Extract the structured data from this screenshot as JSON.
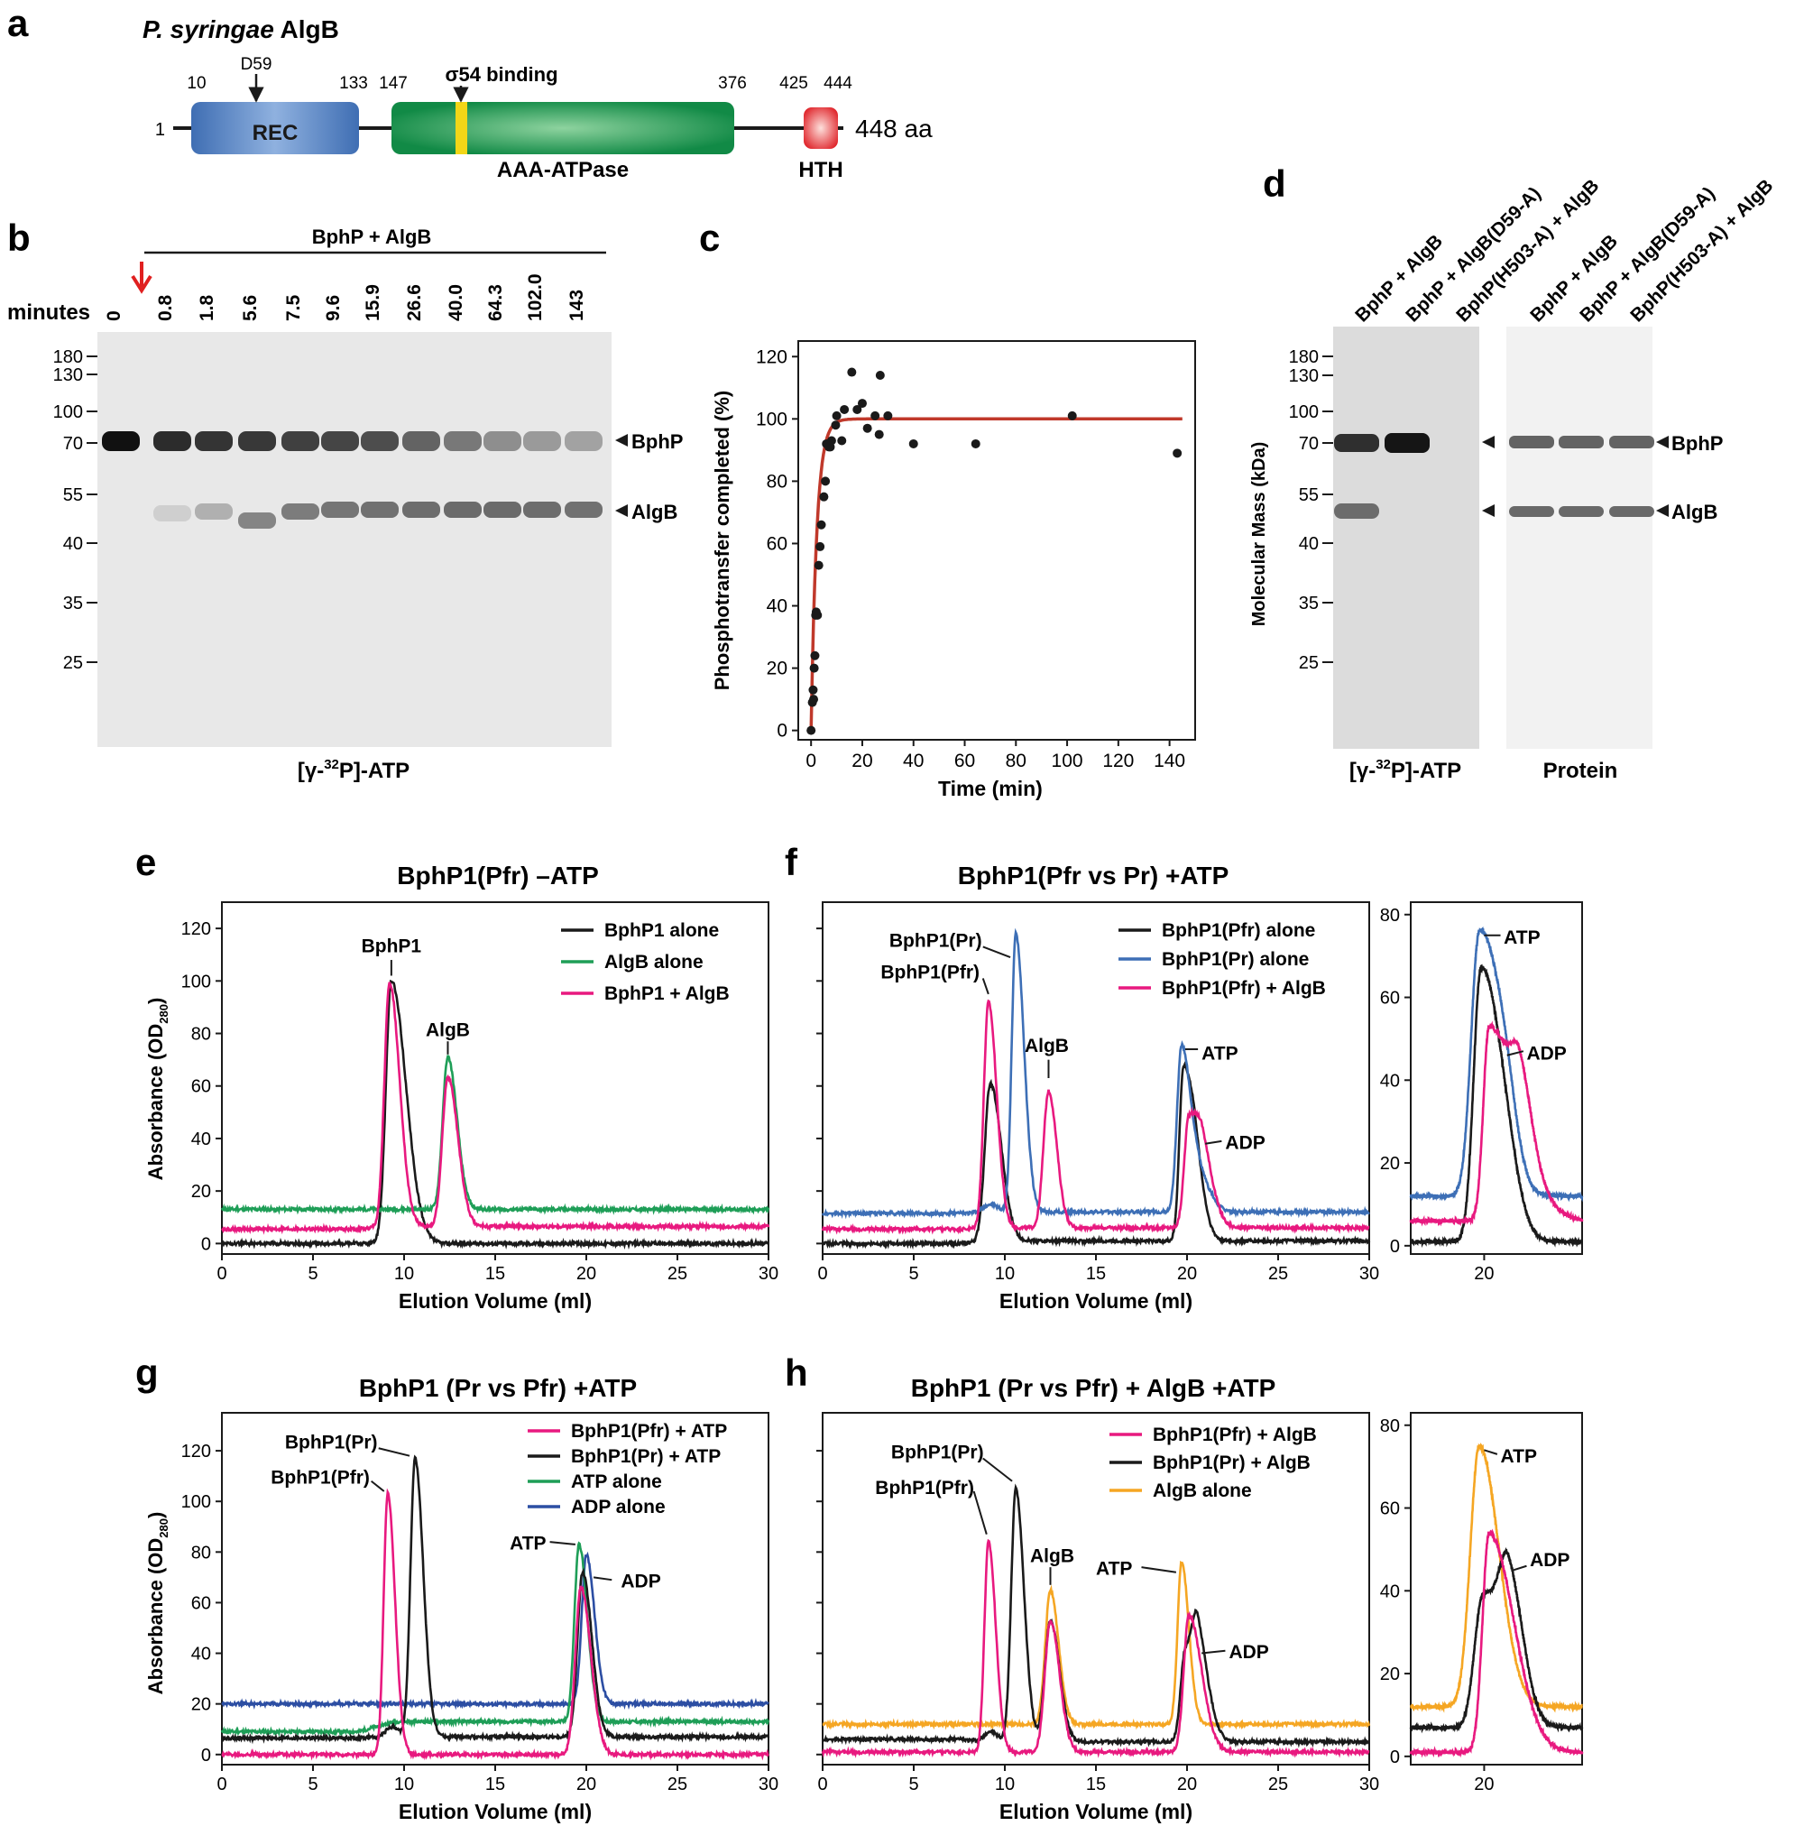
{
  "panels": {
    "a": {
      "letter": "a",
      "title_italic": "P. syringae",
      "title_rest": " AlgB",
      "pos_labels": [
        "10",
        "133",
        "147",
        "376",
        "425",
        "444"
      ],
      "start": "1",
      "end": "448 aa",
      "d59": "D59",
      "sigma": "σ54 binding",
      "rec": "REC",
      "aaa": "AAA-ATPase",
      "hth": "HTH"
    },
    "b": {
      "letter": "b",
      "bracket_label": "BphP + AlgB",
      "minutes_label": "minutes",
      "lanes": [
        "0",
        "0.8",
        "1.8",
        "5.6",
        "7.5",
        "9.6",
        "15.9",
        "26.6",
        "40.0",
        "64.3",
        "102.0",
        "143"
      ],
      "markers": [
        "180",
        "130",
        "100",
        "70",
        "55",
        "40",
        "35",
        "25"
      ],
      "band_bphp": "BphP",
      "band_algb": "AlgB",
      "caption_pre": "[γ-",
      "caption_sup": "32",
      "caption_post": "P]-ATP"
    },
    "c": {
      "letter": "c",
      "ylabel": "Phosphotransfer completed (%)",
      "xlabel": "Time (min)",
      "xticks": [
        "0",
        "20",
        "40",
        "60",
        "80",
        "100",
        "120",
        "140"
      ],
      "yticks": [
        "0",
        "20",
        "40",
        "60",
        "80",
        "100",
        "120"
      ]
    },
    "d": {
      "letter": "d",
      "lanes_left": [
        "BphP + AlgB",
        "BphP + AlgB(D59-A)",
        "BphP(H503-A) + AlgB"
      ],
      "lanes_right": [
        "BphP + AlgB",
        "BphP + AlgB(D59-A)",
        "BphP(H503-A) + AlgB"
      ],
      "ylabel": "Molecular Mass (kDa)",
      "markers": [
        "180",
        "130",
        "100",
        "70",
        "55",
        "40",
        "35",
        "25"
      ],
      "band_bphp": "BphP",
      "band_algb": "AlgB",
      "caption_left_pre": "[γ-",
      "caption_left_sup": "32",
      "caption_left_post": "P]-ATP",
      "caption_right": "Protein"
    },
    "e": {
      "letter": "e",
      "title": "BphP1(Pfr) –ATP",
      "ylabel_main": "Absorbance (OD",
      "ylabel_sub": "280",
      "ylabel_end": ")",
      "xlabel": "Elution Volume (ml)",
      "xticks": [
        "0",
        "5",
        "10",
        "15",
        "20",
        "25",
        "30"
      ],
      "yticks": [
        "0",
        "20",
        "40",
        "60",
        "80",
        "100",
        "120"
      ],
      "legend": [
        "BphP1 alone",
        "AlgB alone",
        "BphP1 + AlgB"
      ],
      "ann": [
        "BphP1",
        "AlgB"
      ]
    },
    "f": {
      "letter": "f",
      "title": "BphP1(Pfr vs Pr) +ATP",
      "xlabel": "Elution Volume (ml)",
      "xticks": [
        "0",
        "5",
        "10",
        "15",
        "20",
        "25",
        "30"
      ],
      "legend": [
        "BphP1(Pfr) alone",
        "BphP1(Pr) alone",
        "BphP1(Pfr) + AlgB"
      ],
      "ann": [
        "BphP1(Pr)",
        "BphP1(Pfr)",
        "AlgB",
        "ATP",
        "ADP"
      ],
      "inset_yticks": [
        "0",
        "20",
        "40",
        "60",
        "80"
      ],
      "inset_xtick": "20",
      "inset_ann": [
        "ATP",
        "ADP"
      ]
    },
    "g": {
      "letter": "g",
      "title": "BphP1 (Pr vs Pfr) +ATP",
      "ylabel_main": "Absorbance (OD",
      "ylabel_sub": "280",
      "ylabel_end": ")",
      "xlabel": "Elution Volume (ml)",
      "xticks": [
        "0",
        "5",
        "10",
        "15",
        "20",
        "25",
        "30"
      ],
      "yticks": [
        "0",
        "20",
        "40",
        "60",
        "80",
        "100",
        "120"
      ],
      "legend": [
        "BphP1(Pfr) + ATP",
        "BphP1(Pr) + ATP",
        "ATP alone",
        "ADP alone"
      ],
      "ann": [
        "BphP1(Pr)",
        "BphP1(Pfr)",
        "ATP",
        "ADP"
      ]
    },
    "h": {
      "letter": "h",
      "title": "BphP1 (Pr vs Pfr) + AlgB +ATP",
      "xlabel": "Elution Volume (ml)",
      "xticks": [
        "0",
        "5",
        "10",
        "15",
        "20",
        "25",
        "30"
      ],
      "legend": [
        "BphP1(Pfr) + AlgB",
        "BphP1(Pr) + AlgB",
        "AlgB alone"
      ],
      "ann": [
        "BphP1(Pr)",
        "BphP1(Pfr)",
        "AlgB",
        "ATP",
        "ADP"
      ],
      "inset_yticks": [
        "0",
        "20",
        "40",
        "60",
        "80"
      ],
      "inset_xtick": "20",
      "inset_ann": [
        "ATP",
        "ADP"
      ]
    }
  },
  "colors": {
    "black": "#1a1a1a",
    "green": "#1e9e57",
    "pink": "#e8197f",
    "blue": "#3d6fb6",
    "navy": "#2c4ea3",
    "orange": "#f5a623",
    "fit": "#c0392b",
    "arrow_red": "#e02020"
  },
  "chart_data": [
    {
      "id": "c",
      "type": "scatter",
      "title": "",
      "xlabel": "Time (min)",
      "ylabel": "Phosphotransfer completed (%)",
      "xlim": [
        -5,
        150
      ],
      "ylim": [
        -3,
        125
      ],
      "x": [
        0,
        0.5,
        0.8,
        1,
        1.2,
        1.5,
        1.8,
        2,
        2.5,
        3,
        3.5,
        4,
        5,
        5.6,
        6,
        7,
        7.5,
        8,
        9.6,
        10,
        12,
        13,
        15.9,
        18,
        20,
        22,
        25,
        26.6,
        27,
        30,
        40,
        64.3,
        102,
        143
      ],
      "y": [
        0,
        9,
        13,
        10,
        20,
        24,
        37,
        38,
        37,
        53,
        59,
        66,
        75,
        80,
        92,
        91,
        91,
        93,
        98,
        101,
        93,
        103,
        115,
        103,
        105,
        97,
        101,
        95,
        114,
        101,
        92,
        92,
        101,
        89
      ],
      "fit": {
        "label": "fit",
        "plateau": 100,
        "k": 0.45
      }
    },
    {
      "id": "e",
      "type": "line",
      "title": "BphP1(Pfr) –ATP",
      "xlabel": "Elution Volume (ml)",
      "ylabel": "Absorbance (OD280)",
      "xlim": [
        0,
        30
      ],
      "ylim": [
        -4,
        130
      ],
      "series": [
        {
          "name": "BphP1 alone",
          "color": "#1a1a1a",
          "baseline": 0,
          "pre": 0,
          "peaks": [
            [
              9.3,
              100,
              0.3,
              0.8
            ]
          ]
        },
        {
          "name": "AlgB alone",
          "color": "#1e9e57",
          "baseline": 13,
          "pre": 13,
          "peaks": [
            [
              12.4,
              58,
              0.28,
              0.5
            ]
          ]
        },
        {
          "name": "BphP1 + AlgB",
          "color": "#e8197f",
          "baseline": 6.5,
          "pre": 5.5,
          "peaks": [
            [
              9.2,
              93,
              0.28,
              0.55
            ],
            [
              12.4,
              57,
              0.3,
              0.55
            ]
          ]
        }
      ]
    },
    {
      "id": "f",
      "type": "line",
      "title": "BphP1(Pfr vs Pr) +ATP",
      "xlabel": "Elution Volume (ml)",
      "ylabel": "Absorbance (OD280)",
      "xlim": [
        0,
        30
      ],
      "ylim": [
        -4,
        130
      ],
      "series": [
        {
          "name": "BphP1(Pfr) alone",
          "color": "#1a1a1a",
          "baseline": 1,
          "pre": 0,
          "peaks": [
            [
              9.2,
              60,
              0.3,
              0.6
            ],
            [
              19.8,
              65,
              0.22,
              0.5
            ],
            [
              20.5,
              20,
              0.3,
              0.5
            ]
          ]
        },
        {
          "name": "BphP1(Pr) alone",
          "color": "#3d6fb6",
          "baseline": 12,
          "pre": 11.5,
          "peaks": [
            [
              9.2,
              3,
              0.4,
              0.4
            ],
            [
              10.6,
              106,
              0.22,
              0.45
            ],
            [
              19.7,
              63,
              0.25,
              0.5
            ],
            [
              20.7,
              12,
              0.4,
              0.6
            ]
          ]
        },
        {
          "name": "BphP1(Pfr) + AlgB",
          "color": "#e8197f",
          "baseline": 6,
          "pre": 5.5,
          "peaks": [
            [
              9.1,
              86,
              0.25,
              0.45
            ],
            [
              12.4,
              52,
              0.28,
              0.45
            ],
            [
              20.1,
              42,
              0.25,
              0.7
            ],
            [
              20.9,
              15,
              0.35,
              0.6
            ]
          ]
        }
      ]
    },
    {
      "id": "f-inset",
      "type": "line",
      "title": "",
      "xlabel": "",
      "ylabel": "",
      "xlim": [
        15.5,
        26
      ],
      "ylim": [
        -2,
        83
      ],
      "series": [
        {
          "name": "BphP1(Pfr) alone",
          "color": "#1a1a1a",
          "baseline": 1,
          "pre": 0,
          "peaks": [
            [
              19.8,
              65,
              0.45,
              1.2
            ],
            [
              21.4,
              8,
              0.8,
              0.8
            ]
          ]
        },
        {
          "name": "BphP1(Pr) alone",
          "color": "#3d6fb6",
          "baseline": 12,
          "pre": 11,
          "peaks": [
            [
              19.7,
              63,
              0.5,
              1.2
            ],
            [
              21.3,
              14,
              0.7,
              0.7
            ]
          ]
        },
        {
          "name": "BphP1(Pfr) + AlgB",
          "color": "#e8197f",
          "baseline": 6,
          "pre": 5.5,
          "peaks": [
            [
              20.3,
              47,
              0.35,
              1.8
            ],
            [
              22.2,
              14,
              0.5,
              0.7
            ]
          ]
        }
      ]
    },
    {
      "id": "g",
      "type": "line",
      "title": "BphP1 (Pr vs Pfr) +ATP",
      "xlabel": "Elution Volume (ml)",
      "ylabel": "Absorbance (OD280)",
      "xlim": [
        0,
        30
      ],
      "ylim": [
        -4,
        135
      ],
      "series": [
        {
          "name": "ADP alone",
          "color": "#2c4ea3",
          "baseline": 20,
          "pre": 20,
          "peaks": [
            [
              20.0,
              59,
              0.25,
              0.45
            ]
          ]
        },
        {
          "name": "ATP alone",
          "color": "#1e9e57",
          "baseline": 13,
          "pre": 9,
          "peaks": [
            [
              19.6,
              70,
              0.25,
              0.45
            ]
          ]
        },
        {
          "name": "BphP1(Pr) + ATP",
          "color": "#1a1a1a",
          "baseline": 7,
          "pre": 6.5,
          "peaks": [
            [
              9.3,
              4,
              0.3,
              0.4
            ],
            [
              10.6,
              110,
              0.25,
              0.45
            ],
            [
              19.8,
              65,
              0.28,
              0.5
            ]
          ]
        },
        {
          "name": "BphP1(Pfr) + ATP",
          "color": "#e8197f",
          "baseline": 0,
          "pre": 0,
          "peaks": [
            [
              9.1,
              103,
              0.22,
              0.4
            ],
            [
              19.7,
              66,
              0.3,
              0.55
            ]
          ]
        }
      ]
    },
    {
      "id": "h",
      "type": "line",
      "title": "BphP1 (Pr vs Pfr) + AlgB +ATP",
      "xlabel": "Elution Volume (ml)",
      "ylabel": "Absorbance (OD280)",
      "xlim": [
        0,
        30
      ],
      "ylim": [
        -4,
        135
      ],
      "series": [
        {
          "name": "AlgB alone",
          "color": "#f5a623",
          "baseline": 12,
          "pre": 12,
          "peaks": [
            [
              12.5,
              53,
              0.28,
              0.45
            ],
            [
              19.7,
              64,
              0.22,
              0.4
            ]
          ]
        },
        {
          "name": "BphP1(Pr) + AlgB",
          "color": "#1a1a1a",
          "baseline": 5,
          "pre": 6,
          "peaks": [
            [
              9.2,
              4,
              0.3,
              0.4
            ],
            [
              10.6,
              100,
              0.25,
              0.45
            ],
            [
              12.5,
              48,
              0.3,
              0.5
            ],
            [
              19.9,
              35,
              0.25,
              0.6
            ],
            [
              20.6,
              32,
              0.3,
              0.6
            ]
          ]
        },
        {
          "name": "BphP1(Pfr) + AlgB",
          "color": "#e8197f",
          "baseline": 1,
          "pre": 1,
          "peaks": [
            [
              9.1,
              83,
              0.22,
              0.4
            ],
            [
              12.5,
              52,
              0.3,
              0.5
            ],
            [
              20.1,
              54,
              0.28,
              0.7
            ]
          ]
        }
      ]
    },
    {
      "id": "h-inset",
      "type": "line",
      "title": "",
      "xlabel": "",
      "ylabel": "",
      "xlim": [
        15.5,
        26
      ],
      "ylim": [
        -2,
        83
      ],
      "series": [
        {
          "name": "AlgB alone",
          "color": "#f5a623",
          "baseline": 12,
          "pre": 12,
          "peaks": [
            [
              19.7,
              63,
              0.55,
              1.2
            ]
          ]
        },
        {
          "name": "BphP1(Pr) + AlgB",
          "color": "#1a1a1a",
          "baseline": 7,
          "pre": 5,
          "peaks": [
            [
              19.9,
              31,
              0.5,
              0.9
            ],
            [
              21.5,
              35,
              0.6,
              0.9
            ]
          ]
        },
        {
          "name": "BphP1(Pfr) + AlgB",
          "color": "#e8197f",
          "baseline": 1,
          "pre": 1,
          "peaks": [
            [
              20.3,
              53,
              0.4,
              1.5
            ]
          ]
        }
      ]
    }
  ]
}
